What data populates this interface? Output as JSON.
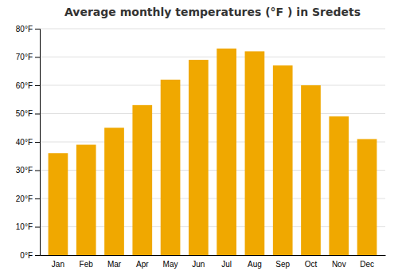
{
  "chart_data": {
    "type": "bar",
    "title": "Average monthly temperatures (°F ) in Sredets",
    "categories": [
      "Jan",
      "Feb",
      "Mar",
      "Apr",
      "May",
      "Jun",
      "Jul",
      "Aug",
      "Sep",
      "Oct",
      "Nov",
      "Dec"
    ],
    "values": [
      36,
      39,
      45,
      53,
      62,
      69,
      73,
      72,
      67,
      60,
      49,
      41
    ],
    "color": "#F0A800",
    "ylim": [
      0,
      80
    ],
    "yticks": [
      {
        "value": 0,
        "label": "0°F"
      },
      {
        "value": 10,
        "label": "10°F"
      },
      {
        "value": 20,
        "label": "20°F"
      },
      {
        "value": 30,
        "label": "30°F"
      },
      {
        "value": 40,
        "label": "40°F"
      },
      {
        "value": 50,
        "label": "50°F"
      },
      {
        "value": 60,
        "label": "60°F"
      },
      {
        "value": 70,
        "label": "70°F"
      },
      {
        "value": 80,
        "label": "80°F"
      }
    ],
    "grid": true
  }
}
